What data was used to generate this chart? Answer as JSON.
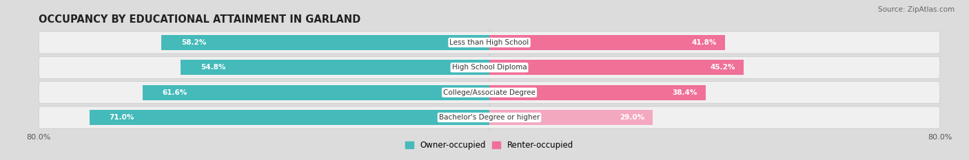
{
  "title": "OCCUPANCY BY EDUCATIONAL ATTAINMENT IN GARLAND",
  "source": "Source: ZipAtlas.com",
  "categories": [
    "Less than High School",
    "High School Diploma",
    "College/Associate Degree",
    "Bachelor's Degree or higher"
  ],
  "owner_values": [
    58.2,
    54.8,
    61.6,
    71.0
  ],
  "renter_values": [
    41.8,
    45.2,
    38.4,
    29.0
  ],
  "owner_color": "#45BABA",
  "renter_colors": [
    "#F07098",
    "#F07098",
    "#F07098",
    "#F4A8C0"
  ],
  "owner_light_color": "#A8DCDC",
  "bar_height": 0.6,
  "xlim_left": -80,
  "xlim_right": 80,
  "background_color": "#DCDCDC",
  "bar_bg_color": "#F0F0F0",
  "title_fontsize": 10.5,
  "source_fontsize": 7.5,
  "label_fontsize": 7.5,
  "value_fontsize": 7.5,
  "legend_owner": "Owner-occupied",
  "legend_renter": "Renter-occupied",
  "legend_owner_color": "#45BABA",
  "legend_renter_color": "#F07098"
}
